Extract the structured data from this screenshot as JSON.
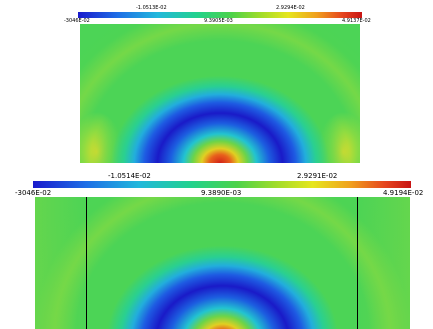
{
  "top_panel": {
    "colorbar": {
      "min_label": "-3046E-02",
      "mid_label": "9.3905E-03",
      "max_label": "4.9137E-02",
      "tick_low": "-1.0513E-02",
      "tick_high": "2.9294E-02"
    }
  },
  "bottom_panel": {
    "colorbar": {
      "min_label": "-3046E-02",
      "mid_label": "9.3890E-03",
      "max_label": "4.9194E-02",
      "tick_low": "-1.0514E-02",
      "tick_high": "2.9291E-02"
    }
  },
  "colors": {
    "min": "#1a1acc",
    "low": "#22b8dc",
    "mid": "#4cd24a",
    "high": "#e6e61e",
    "max": "#c81414"
  }
}
